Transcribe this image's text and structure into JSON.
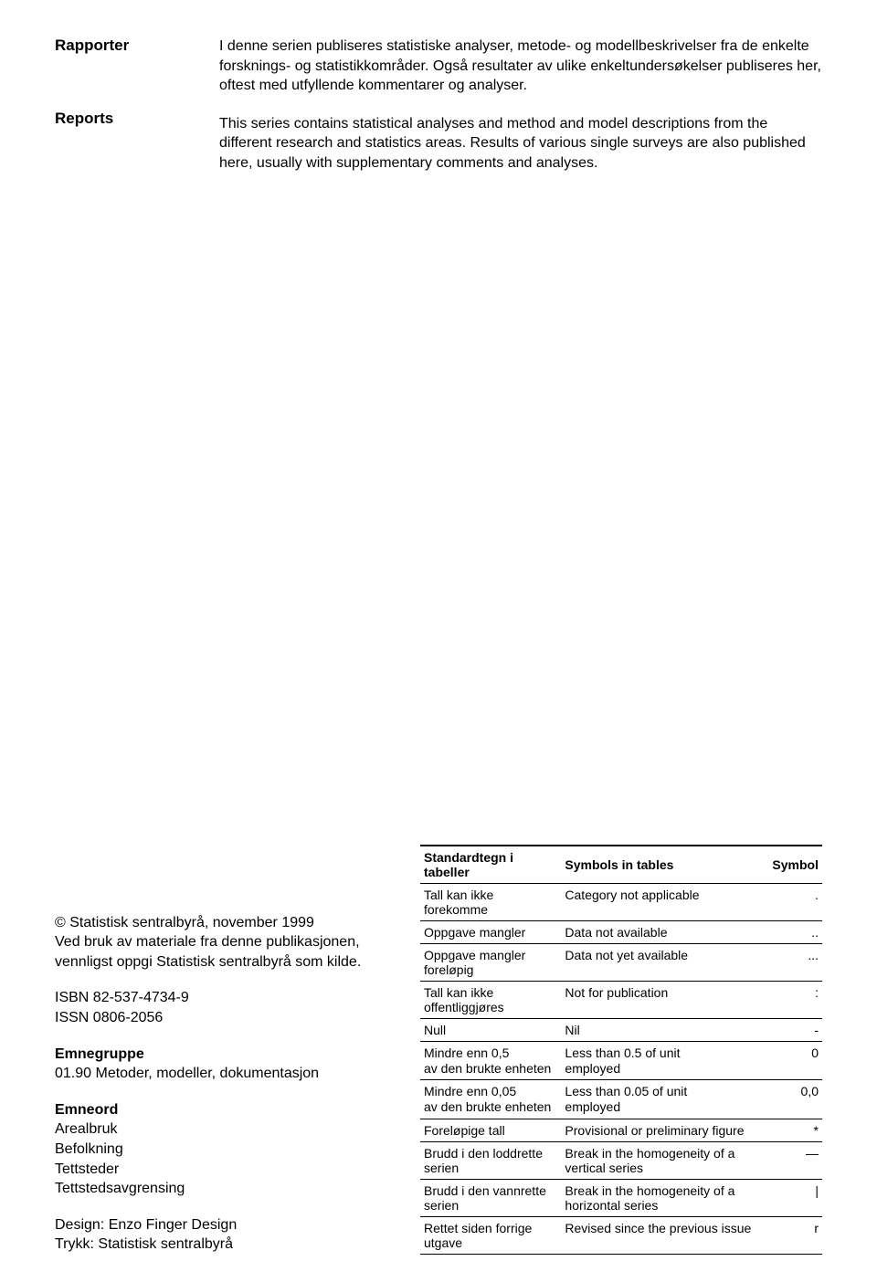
{
  "top": {
    "label_no": "Rapporter",
    "label_en": "Reports",
    "desc_no": "I denne serien publiseres statistiske analyser, metode- og modellbeskrivelser fra de enkelte forsknings- og statistikkområder. Også resultater av ulike enkeltundersøkelser publiseres her, oftest med utfyllende kommentarer og analyser.",
    "desc_en": "This series contains statistical analyses and method and model descriptions from the different research and statistics areas. Results of various single surveys are also published here, usually with supplementary comments and analyses."
  },
  "info": {
    "copyright": "© Statistisk sentralbyrå, november 1999",
    "usage1": "Ved bruk av materiale fra denne publikasjonen,",
    "usage2": "vennligst oppgi Statistisk sentralbyrå som kilde.",
    "isbn": "ISBN 82-537-4734-9",
    "issn": "ISSN 0806-2056",
    "emnegruppe_label": "Emnegruppe",
    "emnegruppe_value": "01.90 Metoder, modeller, dokumentasjon",
    "emneord_label": "Emneord",
    "emneord": [
      "Arealbruk",
      "Befolkning",
      "Tettsteder",
      "Tettstedsavgrensing"
    ],
    "design": "Design: Enzo Finger Design",
    "trykk": "Trykk: Statistisk sentralbyrå"
  },
  "table": {
    "header_no": "Standardtegn i tabeller",
    "header_en": "Symbols in tables",
    "header_sym": "Symbol",
    "rows": [
      {
        "no": "Tall kan ikke forekomme",
        "en": "Category not applicable",
        "sym": "."
      },
      {
        "no": "Oppgave mangler",
        "en": "Data not available",
        "sym": ".."
      },
      {
        "no": "Oppgave mangler foreløpig",
        "en": "Data not yet available",
        "sym": "..."
      },
      {
        "no": "Tall kan ikke offentliggjøres",
        "en": "Not for publication",
        "sym": ":"
      },
      {
        "no": "Null",
        "en": "Nil",
        "sym": "-"
      },
      {
        "no": "Mindre enn 0,5\nav den brukte enheten",
        "en": "Less than 0.5 of unit\nemployed",
        "sym": "0"
      },
      {
        "no": "Mindre enn 0,05\nav den brukte enheten",
        "en": "Less than 0.05 of unit\nemployed",
        "sym": "0,0"
      },
      {
        "no": "Foreløpige tall",
        "en": "Provisional or preliminary figure",
        "sym": "*"
      },
      {
        "no": "Brudd i den loddrette serien",
        "en": "Break in the homogeneity of a vertical series",
        "sym": "—"
      },
      {
        "no": "Brudd i den vannrette serien",
        "en": "Break in the homogeneity of a horizontal series",
        "sym": "|"
      },
      {
        "no": "Rettet siden forrige utgave",
        "en": "Revised since the previous issue",
        "sym": "r"
      }
    ]
  }
}
